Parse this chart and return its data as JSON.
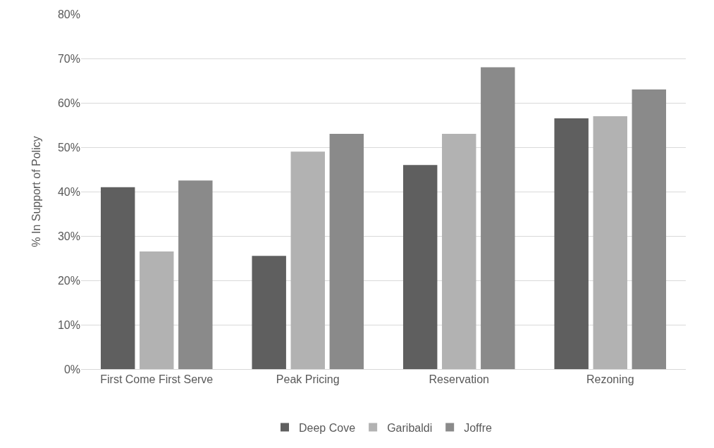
{
  "chart_data": {
    "type": "bar",
    "ylabel": "% In Support of Policy",
    "categories": [
      "First Come First Serve",
      "Peak Pricing",
      "Reservation",
      "Rezoning"
    ],
    "series": [
      {
        "name": "Deep Cove",
        "color": "#5f5f5f",
        "values": [
          41,
          25.5,
          46,
          56.5
        ]
      },
      {
        "name": "Garibaldi",
        "color": "#b2b2b2",
        "values": [
          26.5,
          49,
          53,
          57
        ]
      },
      {
        "name": "Joffre",
        "color": "#8a8a8a",
        "values": [
          42.5,
          53,
          68,
          63
        ]
      }
    ],
    "ylim": [
      0,
      80
    ],
    "yticks": [
      {
        "value": 0,
        "label": "0%"
      },
      {
        "value": 10,
        "label": "10%"
      },
      {
        "value": 20,
        "label": "20%"
      },
      {
        "value": 30,
        "label": "30%"
      },
      {
        "value": 40,
        "label": "40%"
      },
      {
        "value": 50,
        "label": "50%"
      },
      {
        "value": 60,
        "label": "60%"
      },
      {
        "value": 70,
        "label": "70%"
      },
      {
        "value": 80,
        "label": "80%"
      }
    ],
    "grid": "y",
    "legend": "bottom"
  }
}
